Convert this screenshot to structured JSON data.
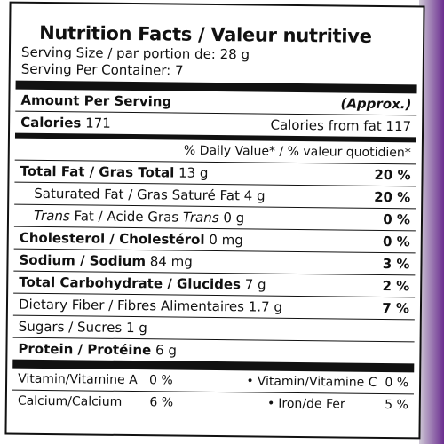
{
  "title": "Nutrition Facts / Valeur nutritive",
  "serving_size": "Serving Size / par portion de: 28 g",
  "servings_per_container": "Serving Per Container: 7",
  "amount_per_serving": "Amount Per Serving",
  "approx": "(Approx.)",
  "calories": {
    "label": "Calories",
    "value": "171",
    "from_fat_label": "Calories from fat",
    "from_fat_value": "117"
  },
  "daily_value_header": "% Daily Value* / % valeur quotidien*",
  "nutrients": [
    {
      "label": "Total Fat / Gras Total",
      "amount": "13 g",
      "dv": "20 %"
    },
    {
      "label": "Saturated Fat / Gras Saturé Fat",
      "amount": "4 g",
      "dv": "20 %"
    },
    {
      "label_pre": "Trans",
      "label_mid": " Fat / Acide Gras ",
      "label_post": "Trans",
      "amount": "0 g",
      "dv": "0 %"
    },
    {
      "label": "Cholesterol / Cholestérol",
      "amount": "0 mg",
      "dv": "0 %"
    },
    {
      "label": "Sodium / Sodium",
      "amount": "84 mg",
      "dv": "3 %"
    },
    {
      "label": "Total Carbohydrate / Glucides",
      "amount": "7 g",
      "dv": "2 %"
    },
    {
      "label": "Dietary Fiber / Fibres Alimentaires",
      "amount": "1.7 g",
      "dv": "7 %"
    },
    {
      "label": "Sugars / Sucres",
      "amount": "1 g"
    },
    {
      "label": "Protein / Protéine",
      "amount": "6 g"
    }
  ],
  "vitamins": [
    {
      "label": "Vitamin/Vitamine A",
      "dv": "0 %"
    },
    {
      "label": "Vitamin/Vitamine C",
      "dv": "0 %"
    },
    {
      "label": "Calcium/Calcium",
      "dv": "6 %"
    },
    {
      "label": "Iron/de Fer",
      "dv": "5 %"
    }
  ],
  "bullet": "•"
}
